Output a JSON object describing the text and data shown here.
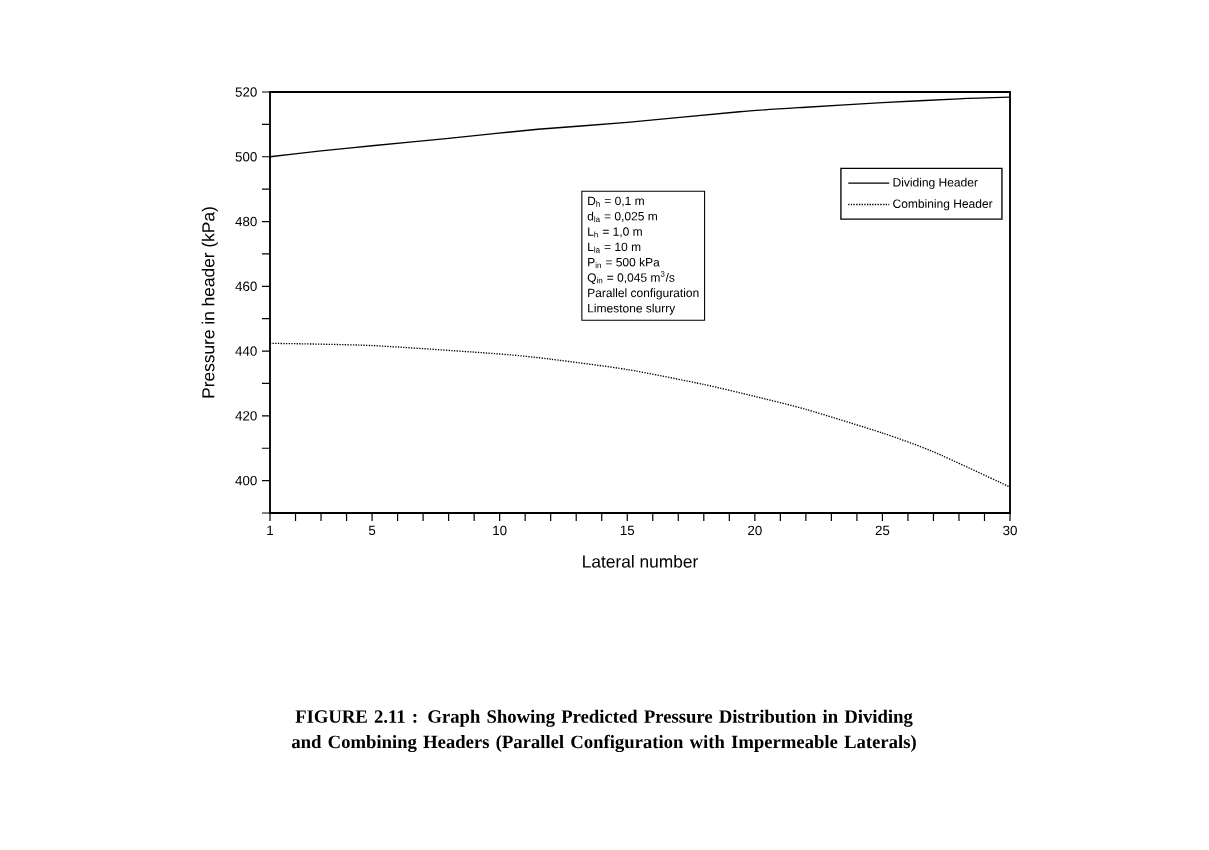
{
  "chart_data": {
    "type": "line",
    "xlabel": "Lateral number",
    "ylabel": "Pressure in header    (kPa)",
    "xlim": [
      1,
      30
    ],
    "ylim": [
      390,
      520
    ],
    "xticks": [
      {
        "value": 1,
        "label": "1"
      },
      {
        "value": 2,
        "label": null
      },
      {
        "value": 3,
        "label": null
      },
      {
        "value": 4,
        "label": null
      },
      5,
      {
        "value": 6,
        "label": null
      },
      {
        "value": 7,
        "label": null
      },
      {
        "value": 8,
        "label": null
      },
      {
        "value": 9,
        "label": null
      },
      10,
      {
        "value": 11,
        "label": null
      },
      {
        "value": 12,
        "label": null
      },
      {
        "value": 13,
        "label": null
      },
      {
        "value": 14,
        "label": null
      },
      15,
      {
        "value": 16,
        "label": null
      },
      {
        "value": 17,
        "label": null
      },
      {
        "value": 18,
        "label": null
      },
      {
        "value": 19,
        "label": null
      },
      20,
      {
        "value": 21,
        "label": null
      },
      {
        "value": 22,
        "label": null
      },
      {
        "value": 23,
        "label": null
      },
      {
        "value": 24,
        "label": null
      },
      25,
      {
        "value": 26,
        "label": null
      },
      {
        "value": 27,
        "label": null
      },
      {
        "value": 28,
        "label": null
      },
      {
        "value": 29,
        "label": null
      },
      30
    ],
    "yticks": [
      {
        "value": 390,
        "label": null
      },
      400,
      {
        "value": 410,
        "label": null
      },
      420,
      {
        "value": 430,
        "label": null
      },
      440,
      {
        "value": 450,
        "label": null
      },
      460,
      {
        "value": 470,
        "label": null
      },
      480,
      {
        "value": 490,
        "label": null
      },
      500,
      {
        "value": 510,
        "label": null
      },
      520
    ],
    "grid": false,
    "legend": "top right",
    "marker": "none",
    "series": [
      {
        "name": "Dividing Header",
        "color": "#000000",
        "line_style": "solid",
        "x": [
          1,
          3,
          5,
          8,
          11.5,
          15,
          19.4,
          22,
          25,
          28,
          30
        ],
        "values": [
          500,
          501.8,
          503.4,
          505.7,
          508.5,
          510.6,
          513.9,
          515.3,
          516.7,
          517.9,
          518.4
        ]
      },
      {
        "name": "Combining Header",
        "color": "#000000",
        "line_style": "dotted",
        "x": [
          1,
          5,
          10,
          12,
          15,
          18,
          20,
          22,
          25,
          27,
          30
        ],
        "values": [
          442.4,
          441.7,
          439.1,
          437.5,
          434.3,
          429.7,
          426,
          422,
          414.7,
          408.9,
          398
        ]
      }
    ],
    "annotations": [
      "D$_{h}$  = 0,1 m",
      "d$_{la}$ = 0,025 m",
      "L$_{h}$ = 1,0 m",
      "L$_{la}$ = 10 m",
      "P$_{in}$ = 500 kPa",
      "Q$_{in}$ = 0,045 m$^{3}$/s",
      "Parallel configuration",
      "Limestone slurry",
      "FIGURE 2.11 : Graph Showing Predicted Pressure Distribution in Dividing and Combining Headers (Parallel Configuration with Impermeable Laterals)"
    ]
  }
}
